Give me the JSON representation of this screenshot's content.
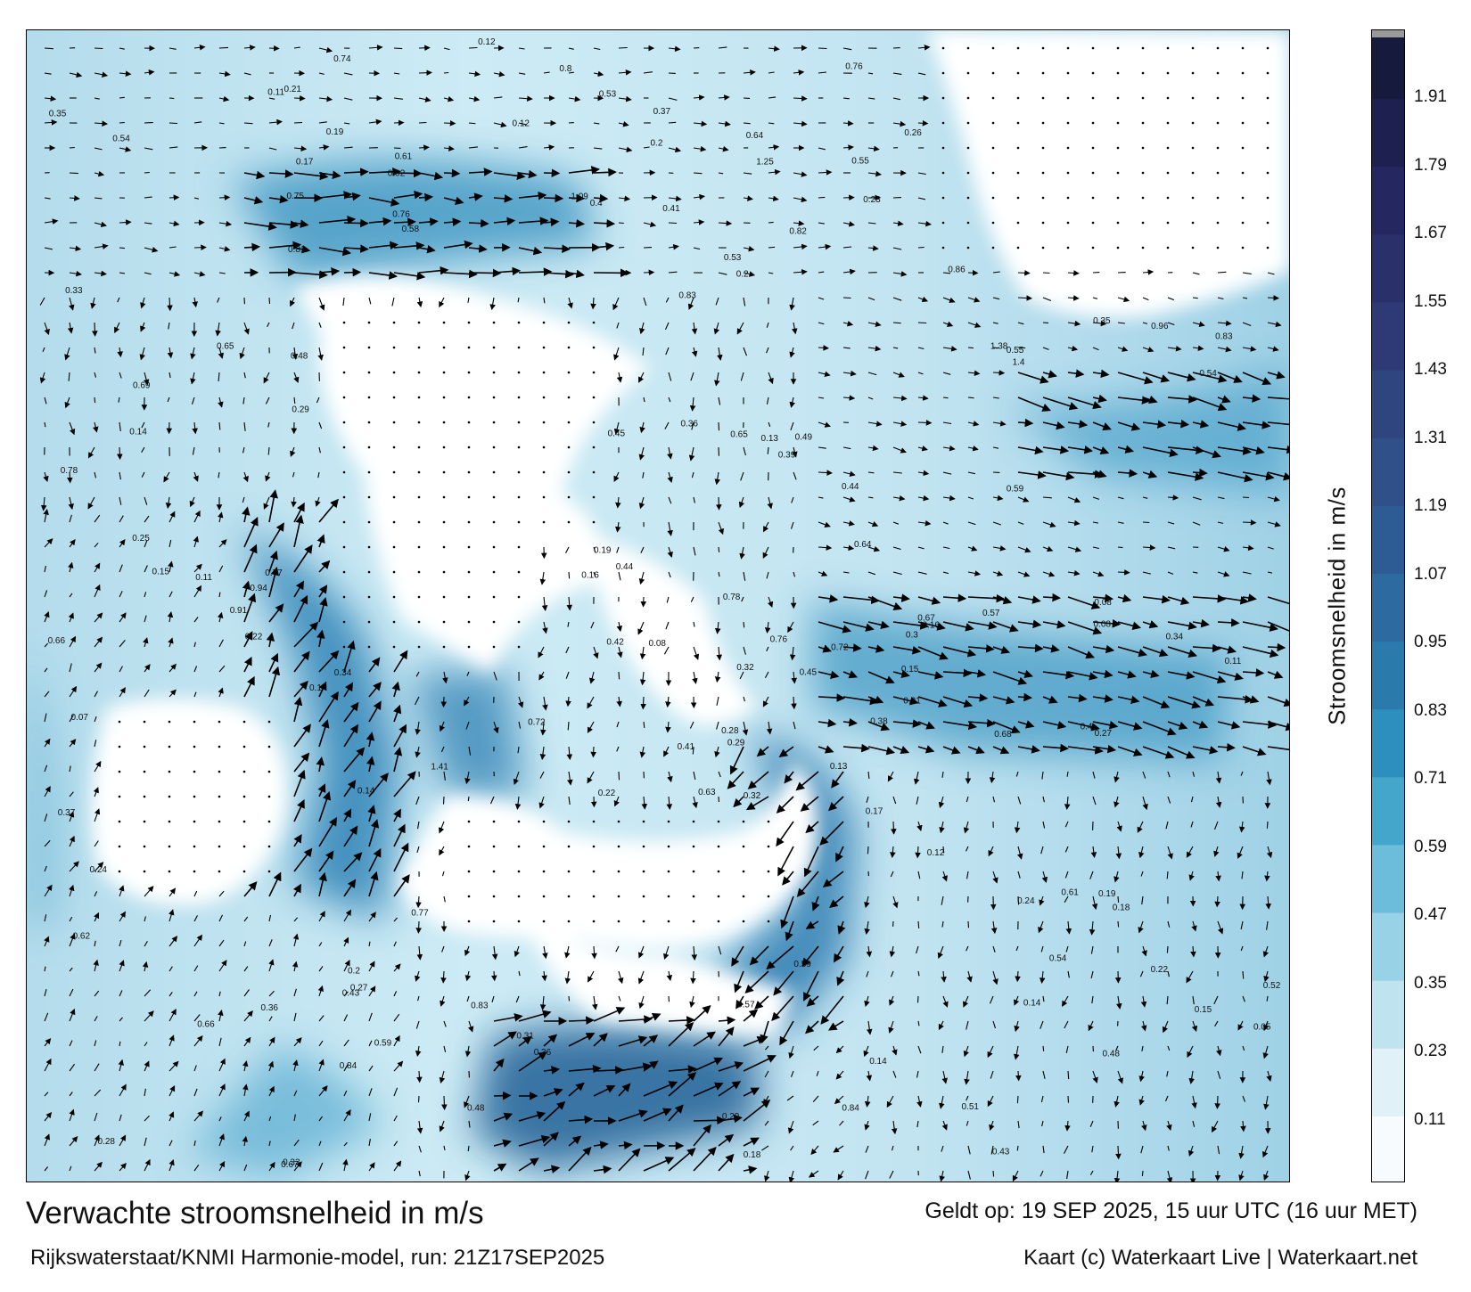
{
  "title": "Verwachte stroomsnelheid in m/s",
  "subtitle": "Rijkswaterstaat/KNMI Harmonie-model, run: 21Z17SEP2025",
  "valid_time": "Geldt op: 19 SEP 2025, 15 uur UTC (16 uur MET)",
  "credit": "Kaart (c) Waterkaart Live | Waterkaart.net",
  "colorbar": {
    "label": "Stroomsnelheid in m/s",
    "ticks": [
      "1.91",
      "1.79",
      "1.67",
      "1.55",
      "1.43",
      "1.31",
      "1.19",
      "1.07",
      "0.95",
      "0.83",
      "0.71",
      "0.59",
      "0.47",
      "0.35",
      "0.23",
      "0.11"
    ],
    "tick_values": [
      1.91,
      1.79,
      1.67,
      1.55,
      1.43,
      1.31,
      1.19,
      1.07,
      0.95,
      0.83,
      0.71,
      0.59,
      0.47,
      0.35,
      0.23,
      0.11
    ],
    "range": [
      0,
      2.03
    ],
    "colors": [
      "#f7fbfd",
      "#e0f1f7",
      "#bfe3ef",
      "#97d2e6",
      "#6cbdda",
      "#44a6cb",
      "#2d8fbd",
      "#2a7aac",
      "#2c6aa0",
      "#2d5c95",
      "#2f5089",
      "#2e4580",
      "#2d3a75",
      "#2a306a",
      "#252760",
      "#1e2050",
      "#161a3c"
    ]
  },
  "colors": {
    "land": "#ffffff",
    "water_low": "#cfe9f3",
    "water_mid": "#5fb5d6",
    "water_high": "#1f5f95",
    "arrow": "#000000"
  },
  "map_labels": [
    {
      "v": "0.2"
    },
    {
      "v": "0.19"
    },
    {
      "v": "0.11"
    },
    {
      "v": "0.1"
    },
    {
      "v": "0.08"
    },
    {
      "v": "0.27"
    },
    {
      "v": "0.12"
    },
    {
      "v": "0.08"
    },
    {
      "v": "0.07"
    },
    {
      "v": "0.05"
    },
    {
      "v": "0.22"
    },
    {
      "v": "0.15"
    },
    {
      "v": "0.14"
    },
    {
      "v": "0.14"
    },
    {
      "v": "0.11"
    },
    {
      "v": "0.14"
    },
    {
      "v": "0.08"
    },
    {
      "v": "0.29"
    },
    {
      "v": "0.33"
    },
    {
      "v": "0.3"
    },
    {
      "v": "0.36"
    },
    {
      "v": "0.49"
    },
    {
      "v": "0.55"
    },
    {
      "v": "0.38"
    },
    {
      "v": "0.58"
    },
    {
      "v": "0.54"
    },
    {
      "v": "0.34"
    },
    {
      "v": "0.69"
    },
    {
      "v": "0.63"
    },
    {
      "v": "0.59"
    },
    {
      "v": "0.61"
    },
    {
      "v": "0.65"
    },
    {
      "v": "0.64"
    },
    {
      "v": "0.59"
    },
    {
      "v": "0.44"
    },
    {
      "v": "0.21"
    },
    {
      "v": "0.12"
    },
    {
      "v": "0.13"
    },
    {
      "v": "0.16"
    },
    {
      "v": "0.18"
    },
    {
      "v": "0.2"
    },
    {
      "v": "0.22"
    },
    {
      "v": "0.24"
    },
    {
      "v": "0.25"
    },
    {
      "v": "0.28"
    },
    {
      "v": "0.29"
    },
    {
      "v": "0.32"
    },
    {
      "v": "0.35"
    },
    {
      "v": "0.31"
    },
    {
      "v": "0.28"
    },
    {
      "v": "0.19"
    },
    {
      "v": "0.23"
    },
    {
      "v": "0.16"
    },
    {
      "v": "0.14"
    },
    {
      "v": "0.12"
    },
    {
      "v": "0.11"
    },
    {
      "v": "0.15"
    },
    {
      "v": "0.17"
    },
    {
      "v": "0.18"
    },
    {
      "v": "0.21"
    },
    {
      "v": "0.84"
    },
    {
      "v": "0.78"
    },
    {
      "v": "0.65"
    },
    {
      "v": "0.54"
    },
    {
      "v": "0.43"
    },
    {
      "v": "0.48"
    },
    {
      "v": "0.76"
    },
    {
      "v": "0.75"
    },
    {
      "v": "0.84"
    },
    {
      "v": "0.83"
    },
    {
      "v": "0.82"
    },
    {
      "v": "0.72"
    },
    {
      "v": "0.77"
    },
    {
      "v": "0.96"
    },
    {
      "v": "0.92"
    },
    {
      "v": "0.86"
    },
    {
      "v": "0.83"
    },
    {
      "v": "0.76"
    },
    {
      "v": "0.66"
    },
    {
      "v": "0.57"
    },
    {
      "v": "0.53"
    },
    {
      "v": "0.61"
    },
    {
      "v": "0.67"
    },
    {
      "v": "0.81"
    },
    {
      "v": "0.78"
    },
    {
      "v": "0.76"
    },
    {
      "v": "0.72"
    },
    {
      "v": "0.74"
    },
    {
      "v": "0.68"
    },
    {
      "v": "0.62"
    },
    {
      "v": "0.64"
    },
    {
      "v": "0.66"
    },
    {
      "v": "0.59"
    },
    {
      "v": "0.55"
    },
    {
      "v": "0.51"
    },
    {
      "v": "0.53"
    },
    {
      "v": "0.57"
    },
    {
      "v": "0.48"
    },
    {
      "v": "0.45"
    },
    {
      "v": "0.52"
    },
    {
      "v": "0.94"
    },
    {
      "v": "1.25"
    },
    {
      "v": "1.38"
    },
    {
      "v": "1.4"
    },
    {
      "v": "1.41"
    },
    {
      "v": "1.09"
    },
    {
      "v": "0.91"
    },
    {
      "v": "0.77"
    },
    {
      "v": "0.83"
    },
    {
      "v": "0.8"
    },
    {
      "v": "0.67"
    },
    {
      "v": "0.54"
    },
    {
      "v": "0.42"
    },
    {
      "v": "0.37"
    },
    {
      "v": "0.48"
    },
    {
      "v": "0.39"
    },
    {
      "v": "0.41"
    },
    {
      "v": "0.4"
    },
    {
      "v": "0.36"
    },
    {
      "v": "0.32"
    },
    {
      "v": "0.33"
    },
    {
      "v": "0.36"
    },
    {
      "v": "0.41"
    },
    {
      "v": "0.43"
    },
    {
      "v": "0.44"
    },
    {
      "v": "0.45"
    },
    {
      "v": "0.4"
    },
    {
      "v": "0.35"
    },
    {
      "v": "0.37"
    },
    {
      "v": "0.34"
    },
    {
      "v": "0.29"
    },
    {
      "v": "0.27"
    },
    {
      "v": "0.26"
    },
    {
      "v": "0.24"
    },
    {
      "v": "0.22"
    },
    {
      "v": "0.2"
    },
    {
      "v": "0.19"
    },
    {
      "v": "0.17"
    },
    {
      "v": "0.15"
    },
    {
      "v": "0.13"
    }
  ]
}
